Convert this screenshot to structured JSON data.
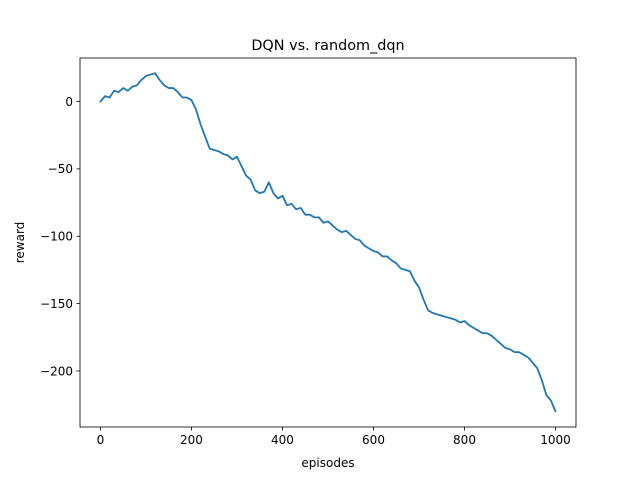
{
  "chart_data": {
    "type": "line",
    "title": "DQN vs. random_dqn",
    "xlabel": "episodes",
    "ylabel": "reward",
    "xlim": [
      -45,
      1045
    ],
    "ylim": [
      -241.6,
      32.3
    ],
    "xticks": [
      0,
      200,
      400,
      600,
      800,
      1000
    ],
    "yticks": [
      0,
      -50,
      -100,
      -150,
      -200
    ],
    "xtick_labels": [
      "0",
      "200",
      "400",
      "600",
      "800",
      "1000"
    ],
    "ytick_labels": [
      "0",
      "−50",
      "−100",
      "−150",
      "−200"
    ],
    "grid": false,
    "series": [
      {
        "color": "#1f77b4",
        "x": [
          0,
          10,
          20,
          30,
          40,
          50,
          60,
          70,
          80,
          90,
          100,
          110,
          120,
          130,
          140,
          150,
          160,
          170,
          180,
          190,
          200,
          210,
          220,
          230,
          240,
          250,
          260,
          270,
          280,
          290,
          300,
          310,
          320,
          330,
          340,
          350,
          360,
          370,
          380,
          390,
          400,
          410,
          420,
          430,
          440,
          450,
          460,
          470,
          480,
          490,
          500,
          510,
          520,
          530,
          540,
          550,
          560,
          570,
          580,
          590,
          600,
          610,
          620,
          630,
          640,
          650,
          660,
          670,
          680,
          690,
          700,
          710,
          720,
          730,
          740,
          750,
          760,
          770,
          780,
          790,
          800,
          810,
          820,
          830,
          840,
          850,
          860,
          870,
          880,
          890,
          900,
          910,
          920,
          930,
          940,
          950,
          960,
          970,
          980,
          990,
          1000
        ],
        "values": [
          0,
          4,
          3,
          8,
          7,
          10,
          8,
          11,
          12,
          16,
          19,
          20,
          21,
          16,
          12,
          10,
          10,
          7,
          3,
          3,
          1,
          -6,
          -17,
          -26,
          -35,
          -36,
          -37,
          -39,
          -40,
          -43,
          -41,
          -48,
          -55,
          -58,
          -66,
          -68,
          -67,
          -60,
          -68,
          -72,
          -70,
          -77,
          -76,
          -80,
          -79,
          -84,
          -84,
          -86,
          -86,
          -90,
          -89,
          -92,
          -95,
          -97,
          -96,
          -99,
          -102,
          -103,
          -107,
          -109,
          -111,
          -112,
          -115,
          -115,
          -118,
          -120,
          -124,
          -125,
          -126,
          -133,
          -138,
          -147,
          -155,
          -157,
          -158,
          -159,
          -160,
          -161,
          -162,
          -164,
          -163,
          -166,
          -168,
          -170,
          -172,
          -172,
          -174,
          -177,
          -180,
          -183,
          -184,
          -186,
          -186,
          -188,
          -190,
          -194,
          -198,
          -207,
          -218,
          -222,
          -230
        ]
      }
    ]
  }
}
